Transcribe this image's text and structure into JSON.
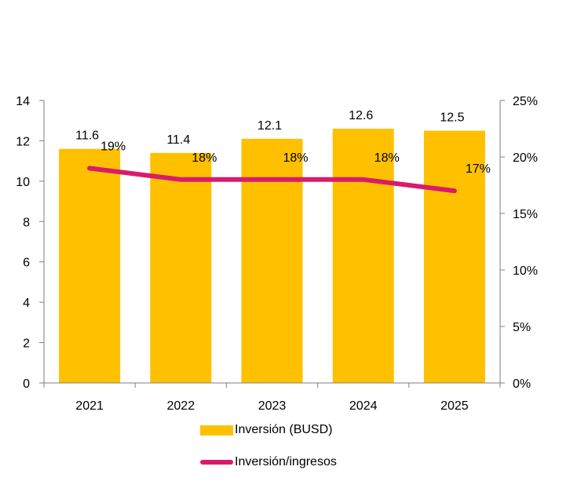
{
  "chart_data": {
    "type": "bar",
    "categories": [
      "2021",
      "2022",
      "2023",
      "2024",
      "2025"
    ],
    "series": [
      {
        "name": "Inversión (BUSD)",
        "type": "bar",
        "axis": "left",
        "values": [
          11.6,
          11.4,
          12.1,
          12.6,
          12.5
        ],
        "labels": [
          "11.6",
          "11.4",
          "12.1",
          "12.6",
          "12.5"
        ]
      },
      {
        "name": "Inversión/ingresos",
        "type": "line",
        "axis": "right",
        "values": [
          19,
          18,
          18,
          18,
          17
        ],
        "labels": [
          "19%",
          "18%",
          "18%",
          "18%",
          "17%"
        ]
      }
    ],
    "y_left": {
      "min": 0,
      "max": 14,
      "step": 2,
      "ticks": [
        "0",
        "2",
        "4",
        "6",
        "8",
        "10",
        "12",
        "14"
      ]
    },
    "y_right": {
      "min": 0,
      "max": 25,
      "step": 5,
      "ticks": [
        "0%",
        "5%",
        "10%",
        "15%",
        "20%",
        "25%"
      ]
    },
    "grid": false,
    "legend_position": "bottom",
    "colors": {
      "bar": "#FFC000",
      "line": "#D81B6A",
      "axis": "#7f7f7f"
    }
  },
  "legend": {
    "bar_label": "Inversión (BUSD)",
    "line_label": "Inversión/ingresos"
  }
}
